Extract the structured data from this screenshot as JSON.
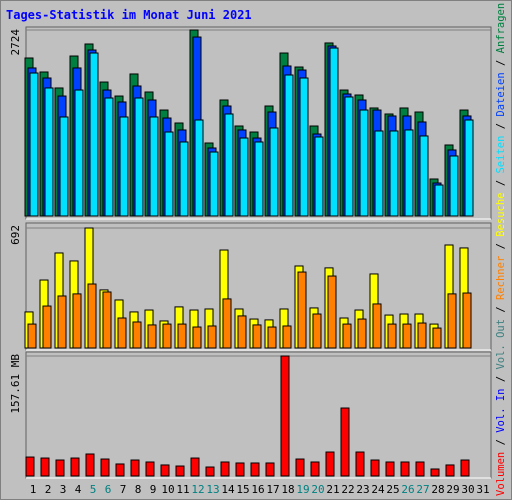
{
  "chart_data": [
    {
      "type": "bar",
      "title": "Tages-Statistik im Monat Juni 2021",
      "ylim": [
        0,
        2724
      ],
      "yticks": [
        2724
      ],
      "series": [
        {
          "name": "Anfragen",
          "color": "#008040",
          "values": [
            2314,
            2109,
            1875,
            2343,
            2519,
            1962,
            1757,
            2080,
            1816,
            1552,
            1362,
            2724,
            1069,
            1699,
            1318,
            1230,
            1611,
            2387,
            2182,
            1318,
            2534,
            1845,
            1772,
            1582,
            1494,
            1582,
            1523,
            542,
            1040,
            1552,
            null
          ]
        },
        {
          "name": "Dateien",
          "color": "#0040ff",
          "values": [
            2168,
            2021,
            1757,
            2168,
            2431,
            1845,
            1670,
            1904,
            1699,
            1435,
            1260,
            2621,
            996,
            1611,
            1260,
            1142,
            1523,
            2197,
            2138,
            1201,
            2490,
            1787,
            1699,
            1552,
            1465,
            1465,
            1377,
            483,
            967,
            1465,
            null
          ]
        },
        {
          "name": "Seiten",
          "color": "#00e0ff",
          "values": [
            2094,
            1875,
            1450,
            1845,
            2387,
            1728,
            1450,
            1728,
            1450,
            1230,
            1084,
            1406,
            937,
            1494,
            1142,
            1084,
            1289,
            2065,
            2021,
            1157,
            2460,
            1743,
            1552,
            1245,
            1245,
            1260,
            1172,
            454,
            879,
            1406,
            null
          ]
        }
      ]
    },
    {
      "type": "bar",
      "ylim": [
        0,
        692
      ],
      "yticks": [
        692
      ],
      "series": [
        {
          "name": "Besuche",
          "color": "#ffff00",
          "values": [
            208,
            392,
            548,
            502,
            692,
            335,
            277,
            208,
            219,
            156,
            237,
            219,
            225,
            565,
            225,
            167,
            162,
            225,
            473,
            231,
            462,
            173,
            219,
            427,
            190,
            196,
            196,
            138,
            594,
            577,
            null
          ]
        },
        {
          "name": "Rechner",
          "color": "#ff8000",
          "values": [
            138,
            242,
            300,
            312,
            369,
            323,
            173,
            150,
            133,
            138,
            138,
            121,
            127,
            283,
            185,
            133,
            121,
            127,
            438,
            196,
            415,
            138,
            167,
            254,
            138,
            138,
            144,
            115,
            312,
            317,
            null
          ]
        }
      ]
    },
    {
      "type": "bar",
      "ylim": [
        0,
        157.61
      ],
      "yticks": [
        {
          "value": 157.61,
          "label": "157.61 MB"
        }
      ],
      "categories": [
        1,
        2,
        3,
        4,
        5,
        6,
        7,
        8,
        9,
        10,
        11,
        12,
        13,
        14,
        15,
        16,
        17,
        18,
        19,
        20,
        21,
        22,
        23,
        24,
        25,
        26,
        27,
        28,
        29,
        30,
        31
      ],
      "weekend_days": [
        5,
        6,
        12,
        13,
        19,
        20,
        26,
        27
      ],
      "weekend_color": "#008080",
      "legend_separator": " / ",
      "series": [
        {
          "name": "Volumen",
          "color": "#ff0000",
          "values": [
            24.9,
            23.6,
            21.0,
            23.6,
            28.9,
            22.3,
            15.8,
            21.0,
            18.4,
            14.5,
            13.1,
            23.6,
            11.8,
            18.4,
            17.1,
            17.1,
            17.1,
            157.61,
            22.3,
            18.4,
            31.5,
            89.3,
            31.5,
            21.0,
            18.4,
            18.4,
            18.4,
            9.2,
            14.5,
            21.0,
            null
          ]
        },
        {
          "name": "Vol. In",
          "color": "#0000ff"
        },
        {
          "name": "Vol. Out",
          "color": "#408080"
        }
      ]
    }
  ]
}
